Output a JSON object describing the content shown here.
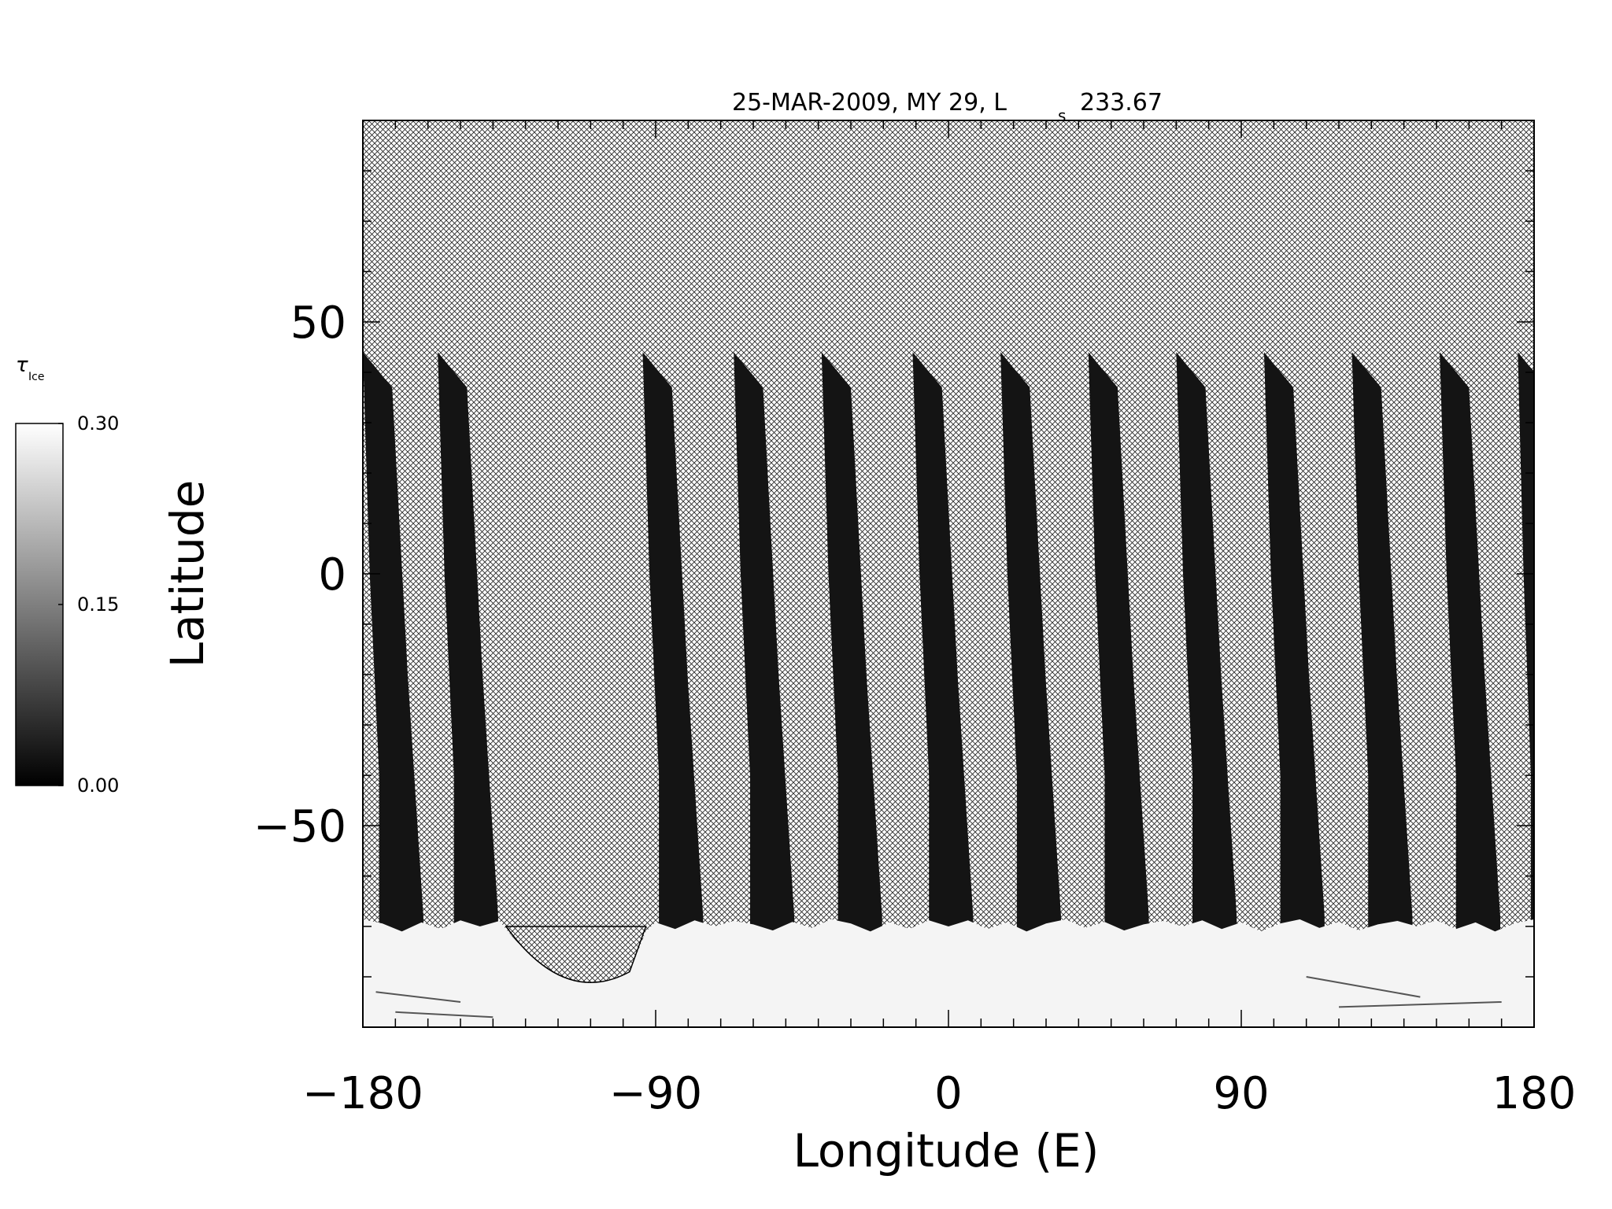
{
  "chart_data": {
    "type": "heatmap",
    "title": "25-MAR-2009, MY 29,  L",
    "title_subscript": "s",
    "title_value": "233.67",
    "xlabel": "Longitude (E)",
    "ylabel": "Latitude",
    "xlim": [
      -180,
      180
    ],
    "ylim": [
      -90,
      90
    ],
    "x_ticks": [
      -180,
      -90,
      0,
      90,
      180
    ],
    "x_tick_labels": [
      "−180",
      "−90",
      "0",
      "90",
      "180"
    ],
    "y_ticks": [
      -50,
      0,
      50
    ],
    "y_tick_labels": [
      "−50",
      "0",
      "50"
    ],
    "x_minor_step": 10,
    "y_minor_step": 10,
    "colorbar": {
      "label_main": "τ",
      "label_sub": "Ice",
      "range": [
        0,
        0.3
      ],
      "ticks": [
        0,
        0.15,
        0.3
      ],
      "tick_labels": [
        "0.00",
        "0.15",
        "0.30"
      ],
      "colormap": "grayscale",
      "low_color": "#000000",
      "high_color": "#ffffff"
    },
    "no_data_pattern": "crosshatch",
    "polar_cap_edge_latitude": -70,
    "swaths": [
      {
        "lon_top": -180,
        "lon_bottom": -174
      },
      {
        "lon_top": -157,
        "lon_bottom": -151
      },
      {
        "lon_top": -94,
        "lon_bottom": -88
      },
      {
        "lon_top": -66,
        "lon_bottom": -60
      },
      {
        "lon_top": -39,
        "lon_bottom": -33
      },
      {
        "lon_top": -11,
        "lon_bottom": -5
      },
      {
        "lon_top": 16,
        "lon_bottom": 22
      },
      {
        "lon_top": 43,
        "lon_bottom": 49
      },
      {
        "lon_top": 70,
        "lon_bottom": 76
      },
      {
        "lon_top": 97,
        "lon_bottom": 103
      },
      {
        "lon_top": 124,
        "lon_bottom": 130
      },
      {
        "lon_top": 151,
        "lon_bottom": 157
      },
      {
        "lon_top": 175,
        "lon_bottom": 180
      }
    ],
    "swath_top_latitude": 44,
    "swath_width_deg": 12,
    "gap_region": {
      "lon_min": -136,
      "lon_max": -93
    }
  }
}
